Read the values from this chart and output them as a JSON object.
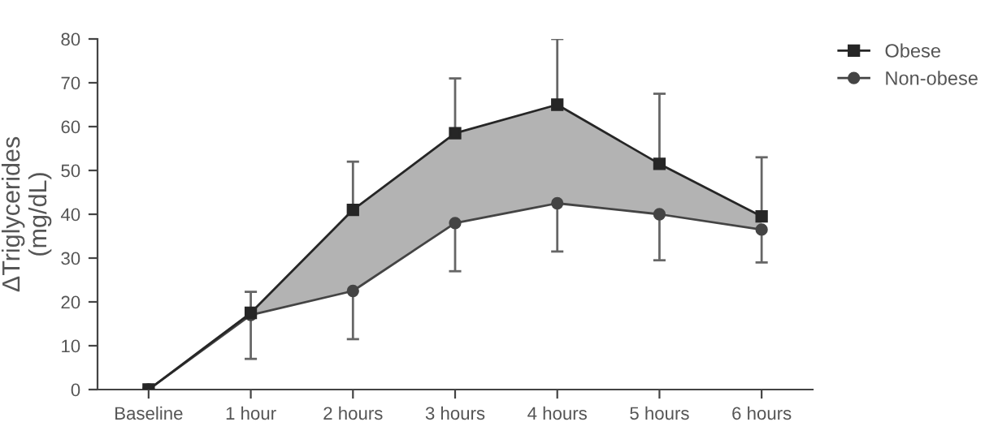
{
  "chart_data": {
    "type": "line",
    "ylabel": "ΔTriglycerides\n(mg/dL)",
    "categories": [
      "Baseline",
      "1 hour",
      "2 hours",
      "3 hours",
      "4 hours",
      "5 hours",
      "6 hours"
    ],
    "series": [
      {
        "name": "Obese",
        "color": "#262626",
        "marker": "square",
        "values": [
          0,
          17.5,
          41,
          58.5,
          65,
          51.5,
          39.5
        ],
        "errors": [
          null,
          [
            17.5,
            22.3
          ],
          [
            41,
            52
          ],
          [
            58.5,
            71
          ],
          [
            65,
            80
          ],
          [
            51.5,
            67.5
          ],
          [
            39.5,
            53
          ]
        ],
        "lower": [
          0,
          17,
          22.5,
          38,
          42.5,
          40,
          36.5
        ],
        "upper": [
          0,
          17.5,
          41,
          58.5,
          65,
          51.5,
          39.5
        ]
      },
      {
        "name": "Non-obese",
        "color": "#444444",
        "marker": "circle",
        "values": [
          0,
          17,
          22.5,
          38,
          42.5,
          40,
          36.5
        ],
        "errors": [
          null,
          [
            7,
            17
          ],
          [
            11.5,
            22.5
          ],
          [
            27,
            38
          ],
          [
            31.5,
            42.5
          ],
          [
            29.5,
            40
          ],
          [
            29,
            36.5
          ]
        ]
      }
    ],
    "ylim": [
      0,
      80
    ],
    "yticks": [
      0,
      10,
      20,
      30,
      40,
      50,
      60,
      70,
      80
    ],
    "grid": false,
    "legend": "top right"
  }
}
